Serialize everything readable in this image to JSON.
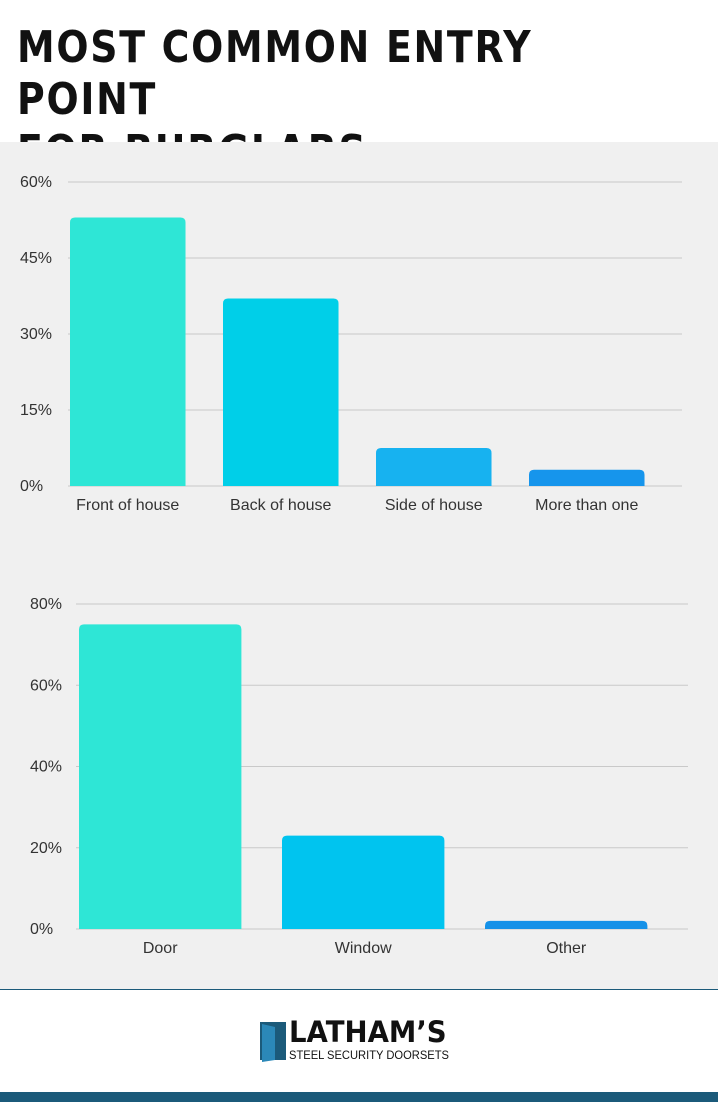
{
  "title": {
    "line1": "MOST COMMON ENTRY POINT",
    "line2": "FOR BURGLARS"
  },
  "chart_data": [
    {
      "type": "bar",
      "categories": [
        "Front of house",
        "Back of house",
        "Side of house",
        "More than one"
      ],
      "values": [
        53,
        37,
        7.5,
        3.2
      ],
      "ylim": [
        0,
        60
      ],
      "yticks": [
        "0%",
        "15%",
        "30%",
        "45%",
        "60%"
      ],
      "colors": [
        "#2ee6d6",
        "#00cfe8",
        "#17b2f0",
        "#1695ec"
      ],
      "grid": true,
      "title": "",
      "xlabel": "",
      "ylabel": ""
    },
    {
      "type": "bar",
      "categories": [
        "Door",
        "Window",
        "Other"
      ],
      "values": [
        75,
        23,
        2
      ],
      "ylim": [
        0,
        80
      ],
      "yticks": [
        "0%",
        "20%",
        "40%",
        "60%",
        "80%"
      ],
      "colors": [
        "#2ee6d6",
        "#00c4ef",
        "#1591e8"
      ],
      "grid": true,
      "title": "",
      "xlabel": "",
      "ylabel": ""
    }
  ],
  "footer": {
    "brand": "LATHAM’S",
    "tagline": "STEEL SECURITY DOORSETS",
    "logo_icon": "door-icon",
    "bar_color": "#1b5a7a"
  }
}
